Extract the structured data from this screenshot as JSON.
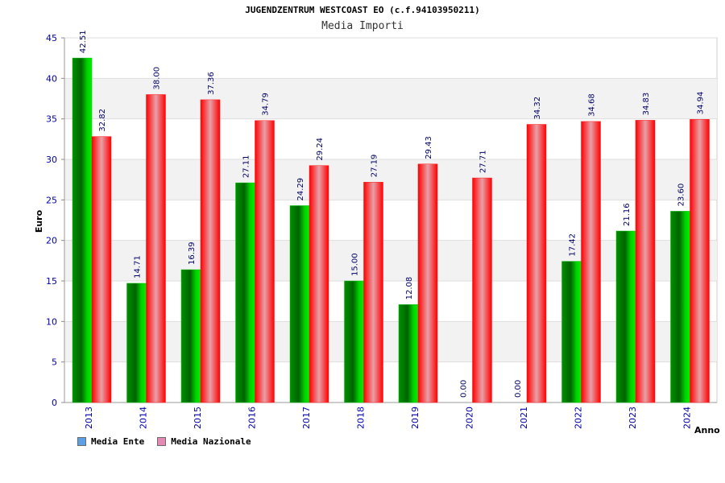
{
  "chart_data": {
    "type": "bar",
    "title": "JUGENDZENTRUM WESTCOAST EO (c.f.94103950211)",
    "subtitle": "Media Importi",
    "xlabel": "Anno",
    "ylabel": "Euro",
    "ylim": [
      0,
      45
    ],
    "yticks": [
      "0",
      "5",
      "10",
      "15",
      "20",
      "25",
      "30",
      "35",
      "40",
      "45"
    ],
    "categories": [
      "2013",
      "2014",
      "2015",
      "2016",
      "2017",
      "2018",
      "2019",
      "2020",
      "2021",
      "2022",
      "2023",
      "2024"
    ],
    "series": [
      {
        "name": "Media Ente",
        "values": [
          42.51,
          14.71,
          16.39,
          27.11,
          24.29,
          15.0,
          12.08,
          0.0,
          0.0,
          17.42,
          21.16,
          23.6
        ],
        "labels": [
          "42.51",
          "14.71",
          "16.39",
          "27.11",
          "24.29",
          "15.00",
          "12.08",
          "0.00",
          "0.00",
          "17.42",
          "21.16",
          "23.60"
        ],
        "color": "#00c000",
        "legend_color": "#5aa0e6"
      },
      {
        "name": "Media Nazionale",
        "values": [
          32.82,
          38.0,
          37.36,
          34.79,
          29.24,
          27.19,
          29.43,
          27.71,
          34.32,
          34.68,
          34.83,
          34.94
        ],
        "labels": [
          "32.82",
          "38.00",
          "37.36",
          "34.79",
          "29.24",
          "27.19",
          "29.43",
          "27.71",
          "34.32",
          "34.68",
          "34.83",
          "34.94"
        ],
        "color": "#ff1a1a",
        "legend_color": "#e68ab4"
      }
    ],
    "grid": true,
    "legend_position": "bottom-left",
    "colors": {
      "axis_text": "#0000aa",
      "label_text": "#000066",
      "band_alt": "#f2f2f2"
    }
  }
}
